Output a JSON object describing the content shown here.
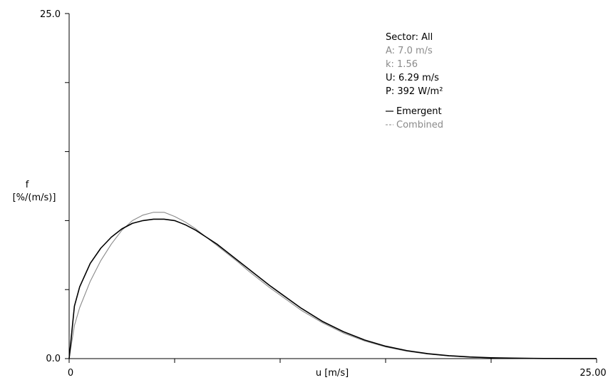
{
  "chart_data": {
    "type": "line",
    "ylabel": "f",
    "ylabel_unit": "[%/(m/s)]",
    "xlabel": "u [m/s]",
    "xlim": [
      0,
      25
    ],
    "ylim": [
      0,
      25
    ],
    "x_tick_labels": [
      "0",
      "25.00"
    ],
    "y_tick_labels": [
      "0.0",
      "25.0"
    ],
    "x_minor_ticks": [
      5,
      10,
      15,
      20
    ],
    "y_minor_ticks": [
      5,
      10,
      15,
      20
    ],
    "grid": false,
    "legend_position": "top-right",
    "info": {
      "sector": "Sector: All",
      "A": "A: 7.0 m/s",
      "k": "k: 1.56",
      "U": "U: 6.29 m/s",
      "P": "P: 392 W/m²"
    },
    "series": [
      {
        "name": "Emergent",
        "legend_label": "Emergent",
        "color": "#000000",
        "style": "solid",
        "x": [
          0,
          0.25,
          0.5,
          1,
          1.5,
          2,
          2.5,
          3,
          3.5,
          4,
          4.5,
          5,
          5.5,
          6,
          6.5,
          7,
          7.5,
          8,
          8.5,
          9,
          9.5,
          10,
          11,
          12,
          13,
          14,
          15,
          16,
          17,
          18,
          19,
          20,
          21,
          22,
          23,
          24,
          25
        ],
        "y": [
          0,
          3.8,
          5.2,
          6.9,
          8.0,
          8.8,
          9.4,
          9.8,
          10.0,
          10.1,
          10.1,
          10.0,
          9.7,
          9.3,
          8.8,
          8.3,
          7.7,
          7.1,
          6.5,
          5.9,
          5.3,
          4.75,
          3.65,
          2.7,
          1.95,
          1.35,
          0.9,
          0.58,
          0.36,
          0.21,
          0.12,
          0.065,
          0.033,
          0.016,
          0.007,
          0.003,
          0.001
        ]
      },
      {
        "name": "Combined",
        "legend_label": "Combined",
        "color": "#8a8a8a",
        "style": "solid",
        "x": [
          0,
          0.25,
          0.5,
          1,
          1.5,
          2,
          2.5,
          3,
          3.5,
          4,
          4.5,
          5,
          5.5,
          6,
          6.5,
          7,
          7.5,
          8,
          8.5,
          9,
          9.5,
          10,
          11,
          12,
          13,
          14,
          15,
          16,
          17,
          18,
          19,
          20,
          21,
          22,
          23,
          24,
          25
        ],
        "y": [
          0,
          2.4,
          3.7,
          5.6,
          7.1,
          8.3,
          9.3,
          10.0,
          10.4,
          10.6,
          10.6,
          10.3,
          9.9,
          9.4,
          8.8,
          8.2,
          7.6,
          7.0,
          6.35,
          5.75,
          5.15,
          4.6,
          3.5,
          2.6,
          1.85,
          1.28,
          0.85,
          0.54,
          0.33,
          0.19,
          0.1,
          0.055,
          0.028,
          0.013,
          0.006,
          0.002,
          0.001
        ]
      }
    ]
  }
}
